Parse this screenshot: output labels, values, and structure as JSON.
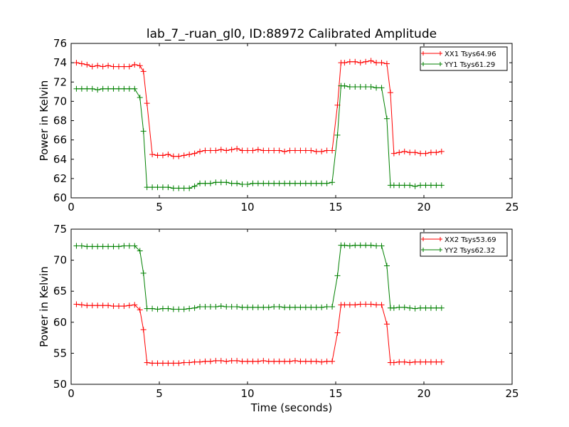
{
  "figure": {
    "title": "lab_7_-ruan_gl0, ID:88972 Calibrated Amplitude",
    "xlabel": "Time (seconds)"
  },
  "chart_data": [
    {
      "type": "line",
      "ylabel": "Power in Kelvin",
      "xlim": [
        0,
        25
      ],
      "ylim": [
        60,
        76
      ],
      "xticks": [
        0,
        5,
        10,
        15,
        20,
        25
      ],
      "yticks": [
        60,
        62,
        64,
        66,
        68,
        70,
        72,
        74,
        76
      ],
      "legend": "top-right",
      "x": [
        0.3,
        0.6,
        0.9,
        1.2,
        1.5,
        1.8,
        2.1,
        2.4,
        2.7,
        3.0,
        3.3,
        3.6,
        3.9,
        4.1,
        4.3,
        4.6,
        4.9,
        5.2,
        5.5,
        5.8,
        6.1,
        6.4,
        6.7,
        7.0,
        7.3,
        7.6,
        7.9,
        8.2,
        8.5,
        8.8,
        9.1,
        9.4,
        9.7,
        10.0,
        10.3,
        10.6,
        10.9,
        11.2,
        11.5,
        11.8,
        12.1,
        12.4,
        12.7,
        13.0,
        13.3,
        13.6,
        13.9,
        14.2,
        14.5,
        14.8,
        15.1,
        15.3,
        15.5,
        15.8,
        16.1,
        16.4,
        16.7,
        17.0,
        17.3,
        17.6,
        17.9,
        18.1,
        18.3,
        18.6,
        18.9,
        19.2,
        19.5,
        19.8,
        20.1,
        20.4,
        20.7,
        21.0
      ],
      "series": [
        {
          "name": "XX1 Tsys64.96",
          "color": "#ff0000",
          "values": [
            74.0,
            73.9,
            73.8,
            73.6,
            73.7,
            73.6,
            73.7,
            73.6,
            73.6,
            73.6,
            73.6,
            73.8,
            73.7,
            73.1,
            69.8,
            64.5,
            64.4,
            64.4,
            64.5,
            64.3,
            64.3,
            64.4,
            64.5,
            64.6,
            64.8,
            64.9,
            64.9,
            64.9,
            65.0,
            64.9,
            65.0,
            65.1,
            64.9,
            64.9,
            64.9,
            65.0,
            64.9,
            64.9,
            64.9,
            64.9,
            64.8,
            64.9,
            64.9,
            64.9,
            64.9,
            64.9,
            64.8,
            64.8,
            64.9,
            64.9,
            69.6,
            74.0,
            74.0,
            74.1,
            74.1,
            74.0,
            74.1,
            74.2,
            74.0,
            74.0,
            73.9,
            70.9,
            64.6,
            64.7,
            64.8,
            64.7,
            64.7,
            64.6,
            64.6,
            64.7,
            64.7,
            64.8
          ]
        },
        {
          "name": "YY1 Tsys61.29",
          "color": "#008000",
          "values": [
            71.3,
            71.3,
            71.3,
            71.3,
            71.2,
            71.3,
            71.3,
            71.3,
            71.3,
            71.3,
            71.3,
            71.3,
            70.4,
            66.9,
            61.1,
            61.1,
            61.1,
            61.1,
            61.1,
            61.0,
            61.0,
            61.0,
            61.0,
            61.2,
            61.5,
            61.5,
            61.5,
            61.6,
            61.6,
            61.6,
            61.5,
            61.5,
            61.4,
            61.4,
            61.5,
            61.5,
            61.5,
            61.5,
            61.5,
            61.5,
            61.5,
            61.5,
            61.5,
            61.5,
            61.5,
            61.5,
            61.5,
            61.5,
            61.5,
            61.6,
            66.5,
            71.6,
            71.6,
            71.5,
            71.5,
            71.5,
            71.5,
            71.5,
            71.4,
            71.4,
            68.2,
            61.3,
            61.3,
            61.3,
            61.3,
            61.3,
            61.2,
            61.3,
            61.3,
            61.3,
            61.3,
            61.3
          ]
        }
      ]
    },
    {
      "type": "line",
      "ylabel": "Power in Kelvin",
      "xlabel": "Time (seconds)",
      "xlim": [
        0,
        25
      ],
      "ylim": [
        50,
        75
      ],
      "xticks": [
        0,
        5,
        10,
        15,
        20,
        25
      ],
      "yticks": [
        50,
        55,
        60,
        65,
        70,
        75
      ],
      "legend": "top-right",
      "x": [
        0.3,
        0.6,
        0.9,
        1.2,
        1.5,
        1.8,
        2.1,
        2.4,
        2.7,
        3.0,
        3.3,
        3.6,
        3.9,
        4.1,
        4.3,
        4.6,
        4.9,
        5.2,
        5.5,
        5.8,
        6.1,
        6.4,
        6.7,
        7.0,
        7.3,
        7.6,
        7.9,
        8.2,
        8.5,
        8.8,
        9.1,
        9.4,
        9.7,
        10.0,
        10.3,
        10.6,
        10.9,
        11.2,
        11.5,
        11.8,
        12.1,
        12.4,
        12.7,
        13.0,
        13.3,
        13.6,
        13.9,
        14.2,
        14.5,
        14.8,
        15.1,
        15.3,
        15.5,
        15.8,
        16.1,
        16.4,
        16.7,
        17.0,
        17.3,
        17.6,
        17.9,
        18.1,
        18.3,
        18.6,
        18.9,
        19.2,
        19.5,
        19.8,
        20.1,
        20.4,
        20.7,
        21.0
      ],
      "series": [
        {
          "name": "XX2 Tsys53.69",
          "color": "#ff0000",
          "values": [
            62.9,
            62.8,
            62.7,
            62.7,
            62.7,
            62.7,
            62.7,
            62.6,
            62.6,
            62.6,
            62.7,
            62.8,
            62.0,
            58.8,
            53.5,
            53.4,
            53.4,
            53.4,
            53.4,
            53.4,
            53.4,
            53.5,
            53.5,
            53.6,
            53.6,
            53.7,
            53.7,
            53.8,
            53.8,
            53.7,
            53.8,
            53.8,
            53.7,
            53.7,
            53.7,
            53.7,
            53.8,
            53.7,
            53.7,
            53.7,
            53.7,
            53.7,
            53.8,
            53.7,
            53.7,
            53.7,
            53.7,
            53.6,
            53.7,
            53.7,
            58.3,
            62.8,
            62.8,
            62.8,
            62.8,
            62.9,
            62.9,
            62.9,
            62.8,
            62.8,
            59.7,
            53.5,
            53.5,
            53.6,
            53.6,
            53.5,
            53.6,
            53.6,
            53.6,
            53.6,
            53.6,
            53.6
          ]
        },
        {
          "name": "YY2 Tsys62.32",
          "color": "#008000",
          "values": [
            72.3,
            72.3,
            72.2,
            72.2,
            72.2,
            72.2,
            72.2,
            72.2,
            72.2,
            72.3,
            72.3,
            72.3,
            71.5,
            67.9,
            62.2,
            62.2,
            62.1,
            62.2,
            62.2,
            62.1,
            62.1,
            62.1,
            62.2,
            62.3,
            62.5,
            62.5,
            62.5,
            62.5,
            62.6,
            62.5,
            62.5,
            62.5,
            62.4,
            62.4,
            62.4,
            62.4,
            62.4,
            62.4,
            62.5,
            62.5,
            62.4,
            62.4,
            62.4,
            62.4,
            62.4,
            62.4,
            62.4,
            62.4,
            62.5,
            62.5,
            67.5,
            72.4,
            72.4,
            72.3,
            72.4,
            72.4,
            72.4,
            72.4,
            72.3,
            72.3,
            69.1,
            62.3,
            62.3,
            62.4,
            62.4,
            62.3,
            62.2,
            62.3,
            62.3,
            62.3,
            62.3,
            62.3
          ]
        }
      ]
    }
  ]
}
